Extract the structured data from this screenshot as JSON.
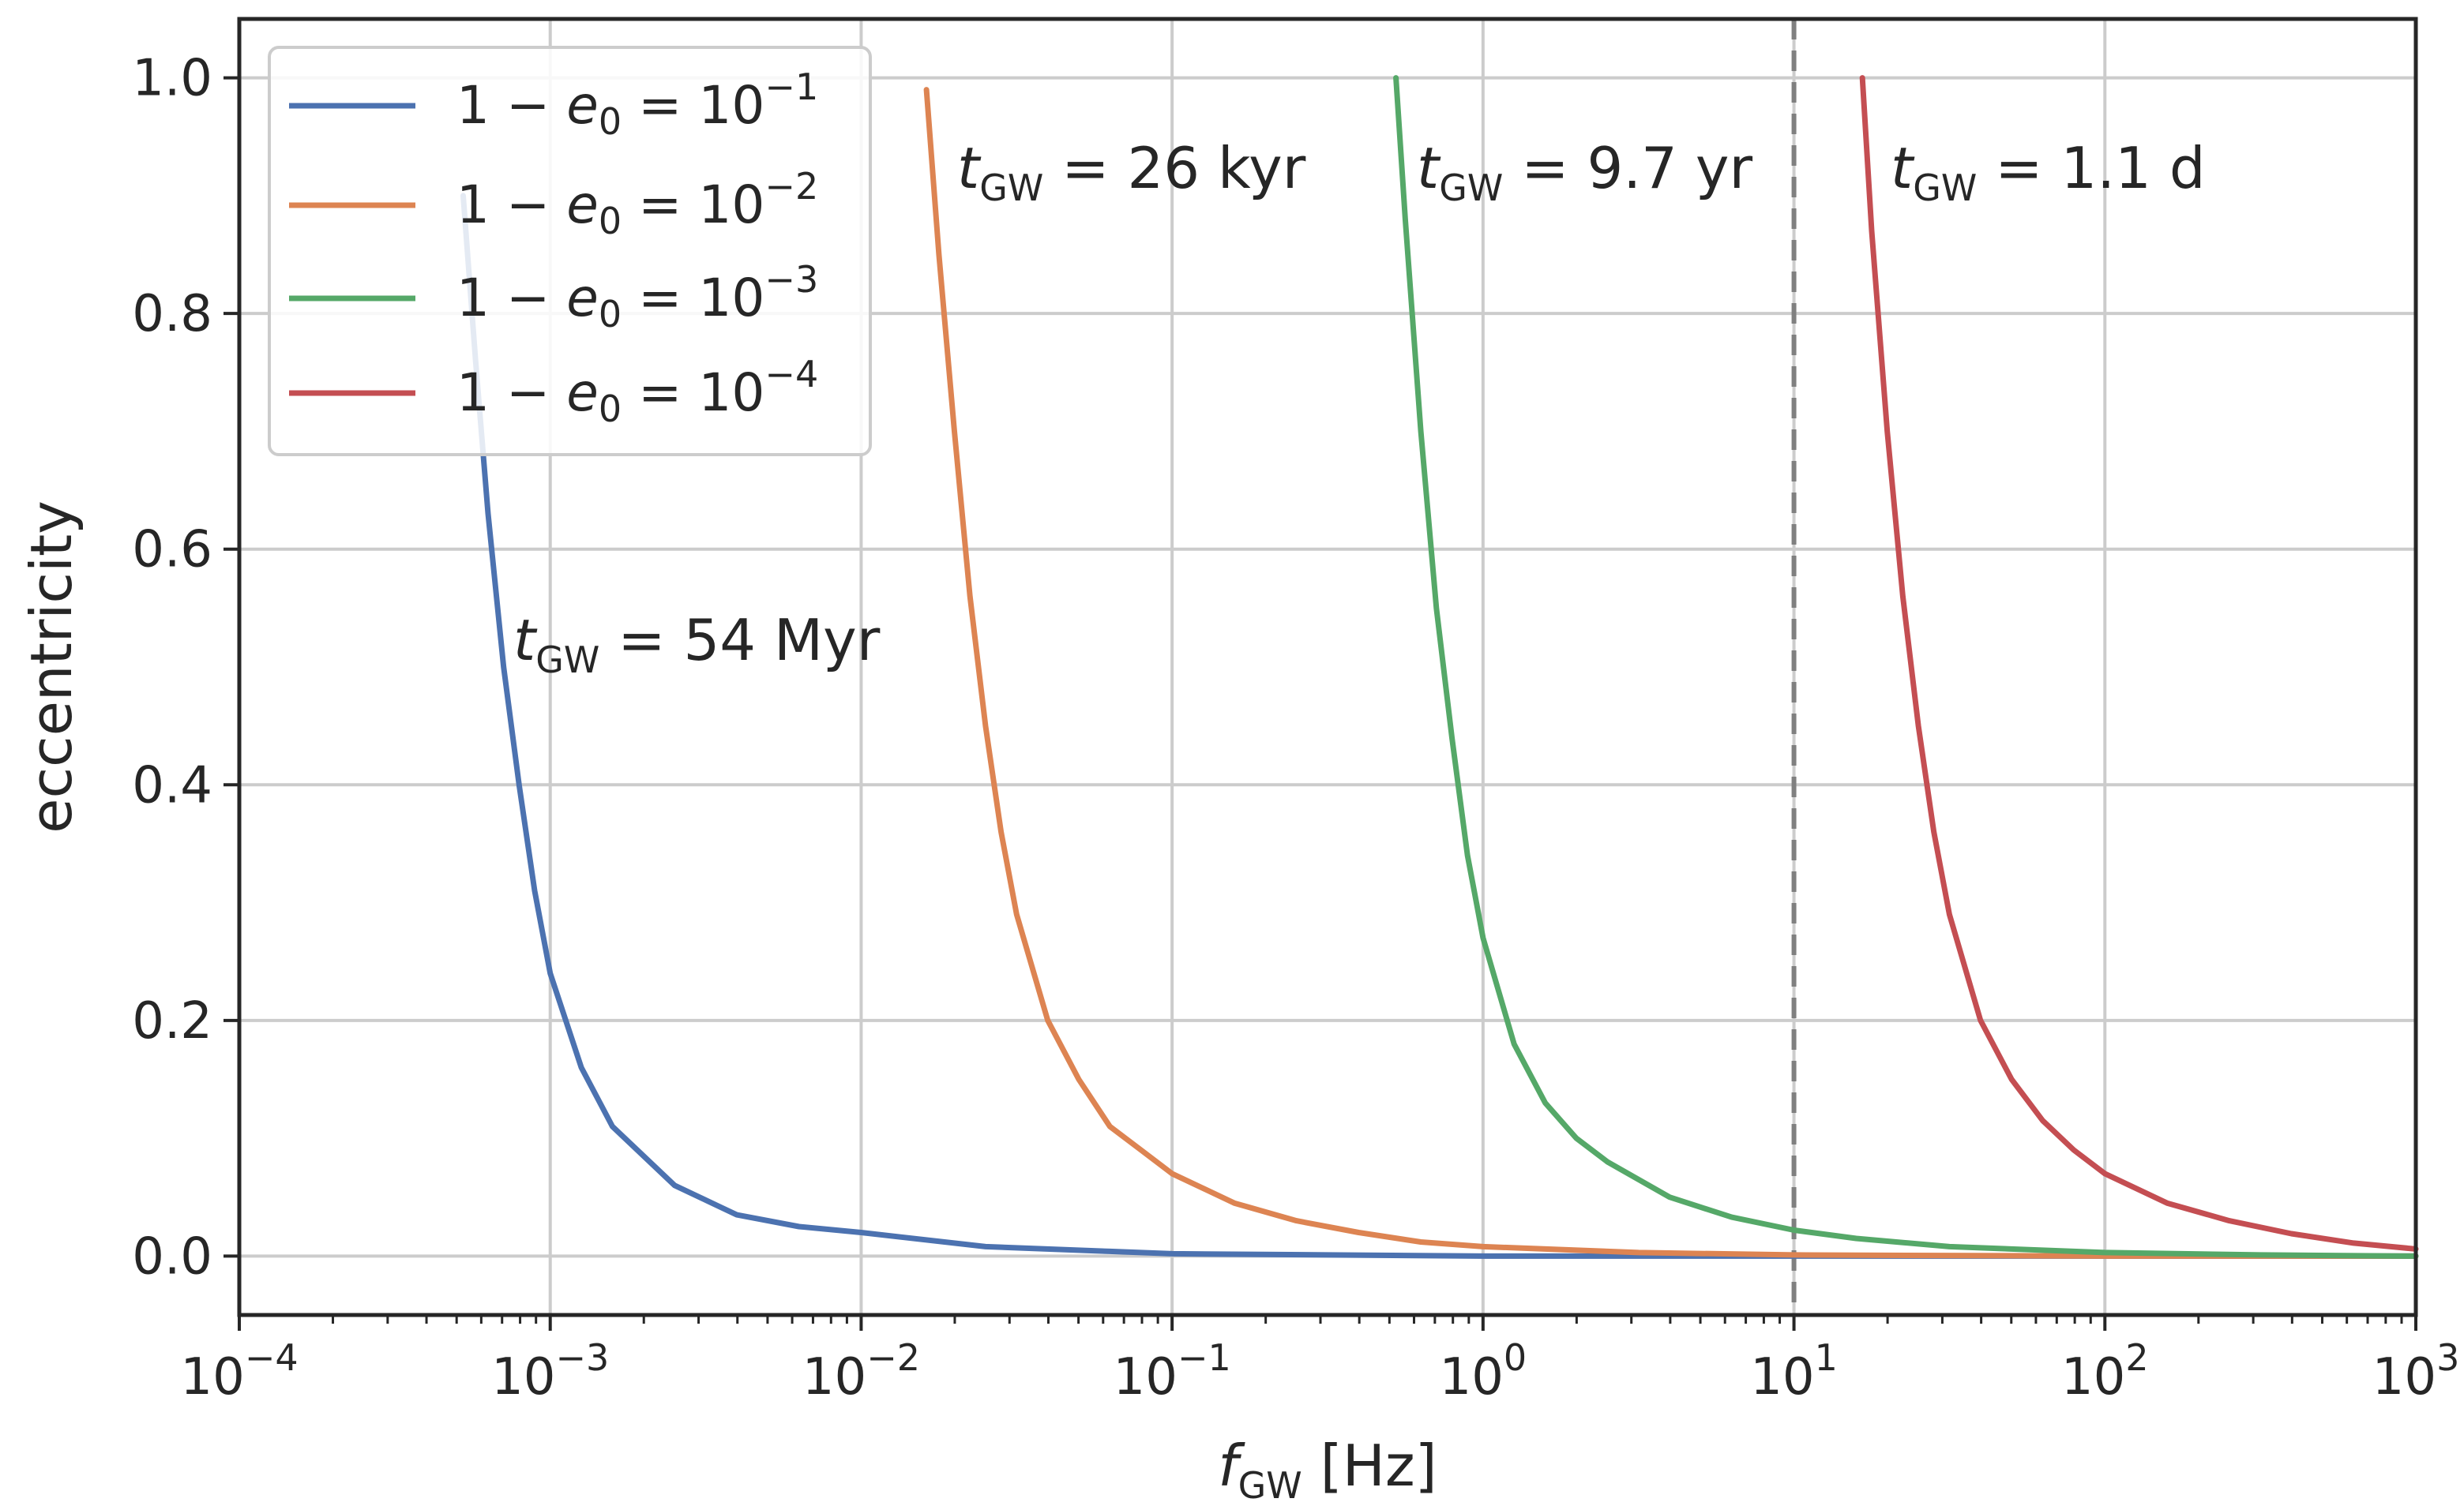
{
  "chart_data": {
    "type": "line",
    "xscale": "log",
    "xlim_log10": [
      -4,
      3
    ],
    "ylim": [
      -0.05,
      1.05
    ],
    "grid": true,
    "xlabel": {
      "var": "f",
      "sub": "GW",
      "unit": "[Hz]"
    },
    "ylabel": "eccentricity",
    "x_ticks": [
      {
        "base": "10",
        "exp": "−4",
        "log10": -4
      },
      {
        "base": "10",
        "exp": "−3",
        "log10": -3
      },
      {
        "base": "10",
        "exp": "−2",
        "log10": -2
      },
      {
        "base": "10",
        "exp": "−1",
        "log10": -1
      },
      {
        "base": "10",
        "exp": "0",
        "log10": 0
      },
      {
        "base": "10",
        "exp": "1",
        "log10": 1
      },
      {
        "base": "10",
        "exp": "2",
        "log10": 2
      },
      {
        "base": "10",
        "exp": "3",
        "log10": 3
      }
    ],
    "y_ticks": [
      {
        "label": "0.0",
        "value": 0.0
      },
      {
        "label": "0.2",
        "value": 0.2
      },
      {
        "label": "0.4",
        "value": 0.4
      },
      {
        "label": "0.6",
        "value": 0.6
      },
      {
        "label": "0.8",
        "value": 0.8
      },
      {
        "label": "1.0",
        "value": 1.0
      }
    ],
    "vline": {
      "x": 10,
      "style": "dashed",
      "color": "#808080"
    },
    "legend_position": "top-left",
    "series": [
      {
        "name": "1 − e0 = 10^−1",
        "legend": {
          "lhs": "1 − ",
          "var": "e",
          "sub": "0",
          "eq": " = 10",
          "exp": "−1"
        },
        "color": "#4c72b0",
        "start_log10f": -3.28,
        "start_e": 0.9,
        "x_log10": [
          -3.28,
          -3.24,
          -3.2,
          -3.15,
          -3.1,
          -3.05,
          -3.0,
          -2.9,
          -2.8,
          -2.6,
          -2.4,
          -2.2,
          -2.0,
          -1.6,
          -1.2,
          -1.0,
          -0.5,
          0.0,
          0.5,
          1.0,
          2.0,
          3.0
        ],
        "e": [
          0.9,
          0.76,
          0.63,
          0.5,
          0.4,
          0.31,
          0.24,
          0.16,
          0.11,
          0.06,
          0.035,
          0.025,
          0.02,
          0.008,
          0.004,
          0.002,
          0.001,
          0.0,
          0.0,
          0.0,
          0.0,
          0.0
        ],
        "annotation": {
          "var": "t",
          "sub": "GW",
          "text": " = 54 Myr"
        }
      },
      {
        "name": "1 − e0 = 10^−2",
        "legend": {
          "lhs": "1 − ",
          "var": "e",
          "sub": "0",
          "eq": " = 10",
          "exp": "−2"
        },
        "color": "#dd8452",
        "start_log10f": -1.79,
        "start_e": 0.99,
        "x_log10": [
          -1.79,
          -1.75,
          -1.7,
          -1.65,
          -1.6,
          -1.55,
          -1.5,
          -1.4,
          -1.3,
          -1.2,
          -1.1,
          -1.0,
          -0.8,
          -0.6,
          -0.4,
          -0.2,
          0.0,
          0.5,
          1.0,
          2.0,
          3.0
        ],
        "e": [
          0.99,
          0.85,
          0.7,
          0.56,
          0.45,
          0.36,
          0.29,
          0.2,
          0.15,
          0.11,
          0.09,
          0.07,
          0.045,
          0.03,
          0.02,
          0.012,
          0.008,
          0.003,
          0.001,
          0.0,
          0.0
        ],
        "annotation": {
          "var": "t",
          "sub": "GW",
          "text": " = 26 kyr"
        }
      },
      {
        "name": "1 − e0 = 10^−3",
        "legend": {
          "lhs": "1 − ",
          "var": "e",
          "sub": "0",
          "eq": " = 10",
          "exp": "−3"
        },
        "color": "#55a868",
        "start_log10f": -0.28,
        "start_e": 1.0,
        "x_log10": [
          -0.28,
          -0.25,
          -0.2,
          -0.15,
          -0.1,
          -0.05,
          0.0,
          0.1,
          0.2,
          0.3,
          0.4,
          0.5,
          0.6,
          0.8,
          1.0,
          1.2,
          1.5,
          2.0,
          2.5,
          3.0
        ],
        "e": [
          1.0,
          0.88,
          0.7,
          0.55,
          0.44,
          0.34,
          0.27,
          0.18,
          0.13,
          0.1,
          0.08,
          0.065,
          0.05,
          0.033,
          0.022,
          0.015,
          0.008,
          0.003,
          0.001,
          0.0
        ],
        "annotation": {
          "var": "t",
          "sub": "GW",
          "text": " = 9.7 yr"
        }
      },
      {
        "name": "1 − e0 = 10^−4",
        "legend": {
          "lhs": "1 − ",
          "var": "e",
          "sub": "0",
          "eq": " = 10",
          "exp": "−4"
        },
        "color": "#c44e52",
        "start_log10f": 1.22,
        "start_e": 1.0,
        "x_log10": [
          1.22,
          1.25,
          1.3,
          1.35,
          1.4,
          1.45,
          1.5,
          1.6,
          1.7,
          1.8,
          1.9,
          2.0,
          2.2,
          2.4,
          2.6,
          2.8,
          3.0
        ],
        "e": [
          1.0,
          0.87,
          0.7,
          0.56,
          0.45,
          0.36,
          0.29,
          0.2,
          0.15,
          0.115,
          0.09,
          0.07,
          0.045,
          0.03,
          0.019,
          0.011,
          0.006
        ],
        "annotation": {
          "var": "t",
          "sub": "GW",
          "text": " = 1.1 d"
        }
      }
    ]
  }
}
